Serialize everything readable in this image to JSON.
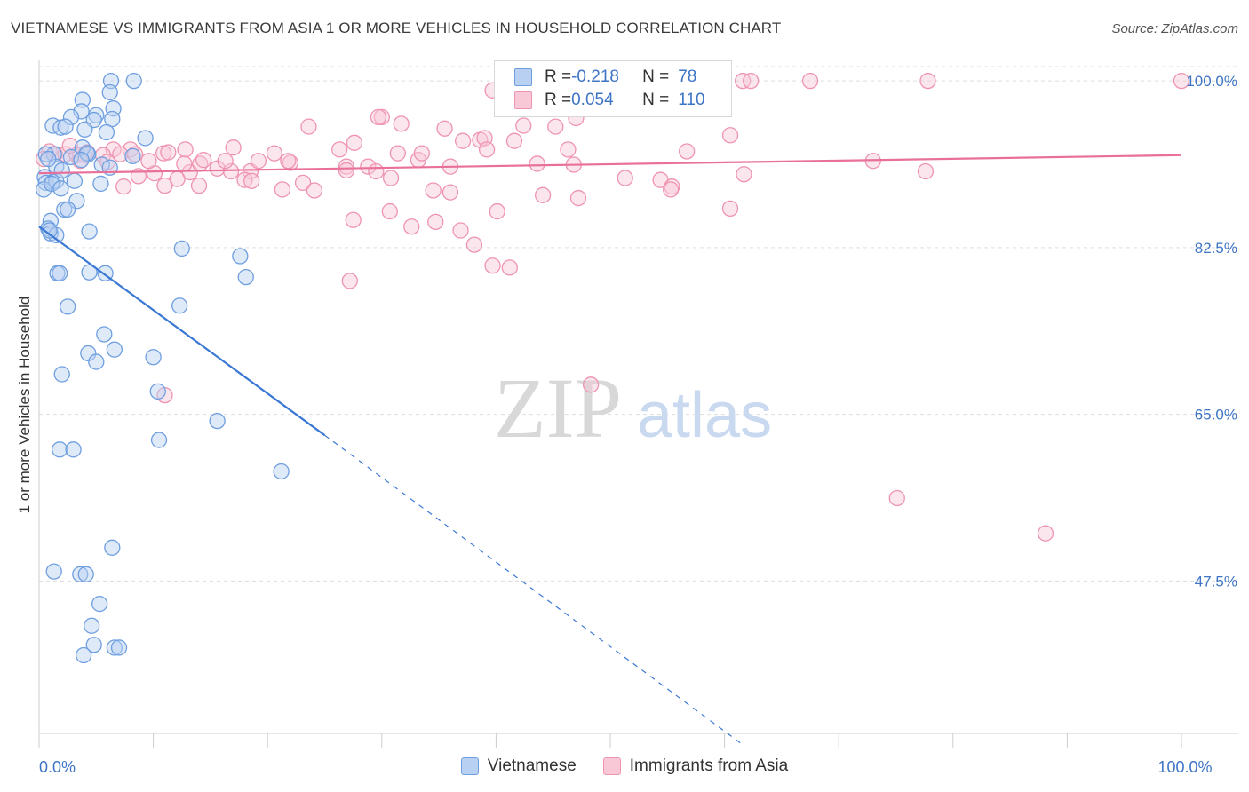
{
  "header": {
    "title": "VIETNAMESE VS IMMIGRANTS FROM ASIA 1 OR MORE VEHICLES IN HOUSEHOLD CORRELATION CHART",
    "source": "Source: ZipAtlas.com"
  },
  "legend": {
    "series1": {
      "r_label": "R = ",
      "r_value": "-0.218",
      "n_label": "N = ",
      "n_value": "78"
    },
    "series2": {
      "r_label": "R = ",
      "r_value": "0.054",
      "n_label": "N = ",
      "n_value": "110"
    }
  },
  "watermark": {
    "zip": "ZIP",
    "atlas": "atlas"
  },
  "colors": {
    "blue_fill": "#b8d0f2",
    "blue_stroke": "#6f9fe0",
    "blue_line": "#3a78d4",
    "pink_fill": "#f8c8d6",
    "pink_stroke": "#ee94b0",
    "pink_line": "#e8709a",
    "tick_label": "#3d74c5",
    "grid": "#dddddd"
  },
  "chart_data": {
    "type": "scatter",
    "ylabel": "1 or more Vehicles in Household",
    "xlim": [
      0,
      100
    ],
    "ylim": [
      31.5,
      101.5
    ],
    "x_tick_labels": [
      {
        "value": 0,
        "label": "0.0%"
      },
      {
        "value": 100,
        "label": "100.0%"
      }
    ],
    "y_tick_labels": [
      {
        "value": 100,
        "label": "100.0%"
      },
      {
        "value": 82.5,
        "label": "82.5%"
      },
      {
        "value": 65,
        "label": "65.0%"
      },
      {
        "value": 47.5,
        "label": "47.5%"
      }
    ],
    "grid": true,
    "legend_position": "top-center",
    "series": [
      {
        "name": "Vietnamese",
        "color": "blue",
        "trend": {
          "x": [
            0,
            25
          ],
          "y": [
            84.7,
            62.8
          ],
          "dashed_to": [
            61.5,
            30.4
          ]
        },
        "points": [
          [
            6.3,
            100
          ],
          [
            8.3,
            100
          ],
          [
            6.2,
            98.8
          ],
          [
            3.8,
            98
          ],
          [
            3.7,
            96.8
          ],
          [
            6.5,
            97.1
          ],
          [
            2.8,
            96.2
          ],
          [
            5.0,
            96.4
          ],
          [
            4.8,
            95.9
          ],
          [
            6.4,
            96.0
          ],
          [
            1.2,
            95.3
          ],
          [
            1.9,
            95.1
          ],
          [
            2.3,
            95.2
          ],
          [
            4.0,
            94.9
          ],
          [
            5.9,
            94.6
          ],
          [
            9.3,
            94.0
          ],
          [
            1.3,
            92.3
          ],
          [
            2.8,
            92.0
          ],
          [
            4.3,
            92.3
          ],
          [
            3.8,
            93.0
          ],
          [
            4.2,
            92.4
          ],
          [
            3.7,
            91.7
          ],
          [
            5.5,
            91.2
          ],
          [
            0.6,
            92.3
          ],
          [
            8.2,
            92.1
          ],
          [
            6.2,
            90.9
          ],
          [
            0.5,
            89.9
          ],
          [
            0.6,
            89.3
          ],
          [
            1.2,
            89.4
          ],
          [
            0.4,
            88.6
          ],
          [
            1.5,
            89.5
          ],
          [
            3.1,
            89.5
          ],
          [
            5.4,
            89.2
          ],
          [
            3.3,
            87.4
          ],
          [
            2.2,
            86.5
          ],
          [
            2.5,
            86.5
          ],
          [
            1.0,
            85.3
          ],
          [
            0.8,
            84.5
          ],
          [
            1.0,
            84.0
          ],
          [
            1.5,
            83.8
          ],
          [
            0.9,
            84.3
          ],
          [
            4.4,
            84.2
          ],
          [
            12.5,
            82.4
          ],
          [
            17.6,
            81.6
          ],
          [
            1.6,
            79.8
          ],
          [
            1.8,
            79.8
          ],
          [
            4.4,
            79.9
          ],
          [
            5.8,
            79.8
          ],
          [
            18.1,
            79.4
          ],
          [
            2.5,
            76.3
          ],
          [
            12.3,
            76.4
          ],
          [
            5.7,
            73.4
          ],
          [
            4.3,
            71.4
          ],
          [
            6.6,
            71.8
          ],
          [
            5.0,
            70.5
          ],
          [
            10.0,
            71.0
          ],
          [
            2.0,
            69.2
          ],
          [
            10.4,
            67.4
          ],
          [
            15.6,
            64.3
          ],
          [
            10.5,
            62.3
          ],
          [
            1.8,
            61.3
          ],
          [
            3.0,
            61.3
          ],
          [
            21.2,
            59.0
          ],
          [
            6.4,
            51.0
          ],
          [
            1.3,
            48.5
          ],
          [
            3.6,
            48.2
          ],
          [
            4.1,
            48.2
          ],
          [
            5.3,
            45.1
          ],
          [
            4.6,
            42.8
          ],
          [
            4.8,
            40.8
          ],
          [
            6.6,
            40.5
          ],
          [
            7.0,
            40.5
          ],
          [
            3.9,
            39.7
          ],
          [
            1.5,
            91.0
          ],
          [
            2.0,
            90.6
          ],
          [
            1.1,
            89.2
          ],
          [
            1.9,
            88.7
          ],
          [
            0.8,
            91.8
          ]
        ]
      },
      {
        "name": "Immigrants from Asia",
        "color": "pink",
        "trend": {
          "x": [
            0,
            100
          ],
          "y": [
            90.3,
            92.2
          ]
        },
        "points": [
          [
            53.1,
            100
          ],
          [
            57.3,
            100
          ],
          [
            61.6,
            100
          ],
          [
            62.3,
            100
          ],
          [
            67.5,
            100
          ],
          [
            77.8,
            100
          ],
          [
            100,
            100
          ],
          [
            39.7,
            99.0
          ],
          [
            42.6,
            99.0
          ],
          [
            47.2,
            99.0
          ],
          [
            52.0,
            98.1
          ],
          [
            59.1,
            97.6
          ],
          [
            30.0,
            96.2
          ],
          [
            29.7,
            96.2
          ],
          [
            23.6,
            95.2
          ],
          [
            35.5,
            95.0
          ],
          [
            45.2,
            95.2
          ],
          [
            47.0,
            96.1
          ],
          [
            42.4,
            95.3
          ],
          [
            31.7,
            95.5
          ],
          [
            17.0,
            93.0
          ],
          [
            12.8,
            92.8
          ],
          [
            27.6,
            93.5
          ],
          [
            37.1,
            93.7
          ],
          [
            38.6,
            93.8
          ],
          [
            39.0,
            94.0
          ],
          [
            41.6,
            93.7
          ],
          [
            46.3,
            92.8
          ],
          [
            56.7,
            92.6
          ],
          [
            60.5,
            94.3
          ],
          [
            10.9,
            92.4
          ],
          [
            20.6,
            92.4
          ],
          [
            26.3,
            92.8
          ],
          [
            31.4,
            92.4
          ],
          [
            39.2,
            92.8
          ],
          [
            33.2,
            91.7
          ],
          [
            22.0,
            91.4
          ],
          [
            28.8,
            91.0
          ],
          [
            10.1,
            90.3
          ],
          [
            13.2,
            90.4
          ],
          [
            15.6,
            90.8
          ],
          [
            16.8,
            90.5
          ],
          [
            18.5,
            90.5
          ],
          [
            26.9,
            91.0
          ],
          [
            36.0,
            91.0
          ],
          [
            43.6,
            91.3
          ],
          [
            46.8,
            91.2
          ],
          [
            8.7,
            90.0
          ],
          [
            12.1,
            89.7
          ],
          [
            18.0,
            89.6
          ],
          [
            0.9,
            92.6
          ],
          [
            1.4,
            92.3
          ],
          [
            2.3,
            92.3
          ],
          [
            3.3,
            92.2
          ],
          [
            4.0,
            92.2
          ],
          [
            6.5,
            92.8
          ],
          [
            8.0,
            92.8
          ],
          [
            9.6,
            91.6
          ],
          [
            0.4,
            91.8
          ],
          [
            2.7,
            93.2
          ],
          [
            4.2,
            92.5
          ],
          [
            5.6,
            92.2
          ],
          [
            7.1,
            92.3
          ],
          [
            8.4,
            92.3
          ],
          [
            12.7,
            91.3
          ],
          [
            14.1,
            91.3
          ],
          [
            16.3,
            91.6
          ],
          [
            19.2,
            91.6
          ],
          [
            21.8,
            91.6
          ],
          [
            3.6,
            91.6
          ],
          [
            6.0,
            91.5
          ],
          [
            11.3,
            92.5
          ],
          [
            14.4,
            91.7
          ],
          [
            7.4,
            88.9
          ],
          [
            11.0,
            89.0
          ],
          [
            14.0,
            89.0
          ],
          [
            18.6,
            89.5
          ],
          [
            21.3,
            88.6
          ],
          [
            23.1,
            89.3
          ],
          [
            24.1,
            88.5
          ],
          [
            26.9,
            90.6
          ],
          [
            29.5,
            90.5
          ],
          [
            30.8,
            89.8
          ],
          [
            33.5,
            92.4
          ],
          [
            34.5,
            88.5
          ],
          [
            36.0,
            88.3
          ],
          [
            40.1,
            86.3
          ],
          [
            44.1,
            88.0
          ],
          [
            47.2,
            87.7
          ],
          [
            51.3,
            89.8
          ],
          [
            54.4,
            89.6
          ],
          [
            55.4,
            88.9
          ],
          [
            61.7,
            90.2
          ],
          [
            73.0,
            91.6
          ],
          [
            77.6,
            90.5
          ],
          [
            27.5,
            85.4
          ],
          [
            30.7,
            86.3
          ],
          [
            32.6,
            84.7
          ],
          [
            34.7,
            85.2
          ],
          [
            36.9,
            84.3
          ],
          [
            38.1,
            82.8
          ],
          [
            39.7,
            80.6
          ],
          [
            41.2,
            80.4
          ],
          [
            27.2,
            79.0
          ],
          [
            55.3,
            88.6
          ],
          [
            48.3,
            68.1
          ],
          [
            11.0,
            67.0
          ],
          [
            60.5,
            86.6
          ],
          [
            75.1,
            56.2
          ],
          [
            88.1,
            52.5
          ]
        ]
      }
    ]
  }
}
